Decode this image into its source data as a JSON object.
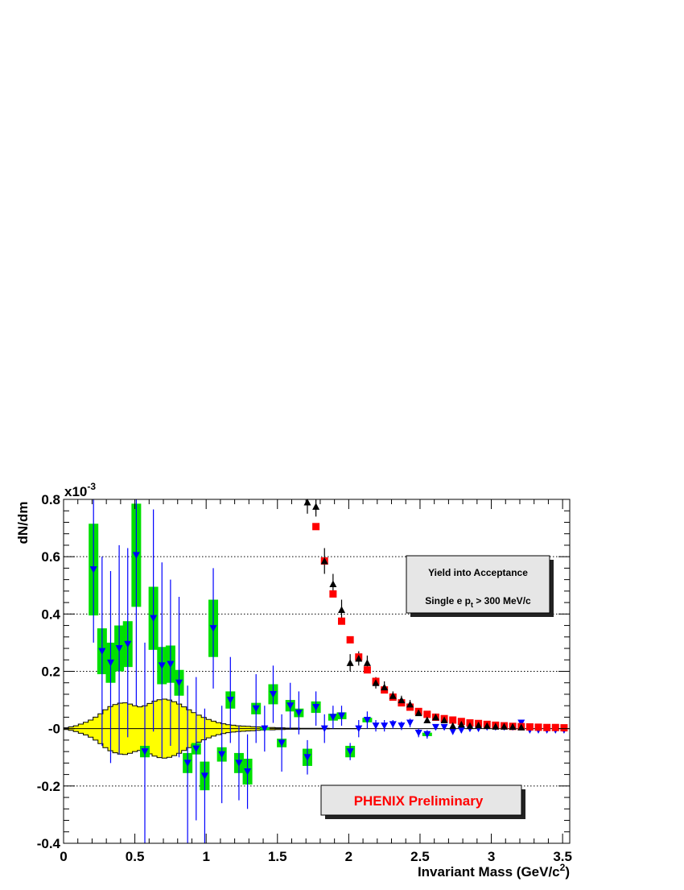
{
  "chart_data": {
    "type": "scatter",
    "ylabel": "dN/dm",
    "y_exponent_label": "x10",
    "y_exponent_sup": "-3",
    "xlabel_main": "Invariant Mass (GeV/c",
    "xlabel_sup": "2",
    "xlabel_end": ")",
    "xlim": [
      0,
      3.55
    ],
    "ylim": [
      -0.4,
      0.8
    ],
    "x_ticks": [
      {
        "value": 0,
        "label": "0"
      },
      {
        "value": 0.5,
        "label": "0.5"
      },
      {
        "value": 1,
        "label": "1"
      },
      {
        "value": 1.5,
        "label": "1.5"
      },
      {
        "value": 2,
        "label": "2"
      },
      {
        "value": 2.5,
        "label": "2.5"
      },
      {
        "value": 3,
        "label": "3"
      },
      {
        "value": 3.5,
        "label": "3.5"
      }
    ],
    "y_ticks": [
      {
        "value": -0.4,
        "label": "-0.4"
      },
      {
        "value": -0.2,
        "label": "-0.2"
      },
      {
        "value": 0,
        "label": "-0"
      },
      {
        "value": 0.2,
        "label": "0.2"
      },
      {
        "value": 0.4,
        "label": "0.4"
      },
      {
        "value": 0.6,
        "label": "0.6"
      },
      {
        "value": 0.8,
        "label": "0.8"
      }
    ],
    "gridlines_y": [
      -0.2,
      0.2,
      0.4,
      0.6
    ],
    "text_boxes": [
      {
        "line1": "Yield into Acceptance",
        "line2_main": "Single e p",
        "line2_sub": "t",
        "line2_end": " > 300 MeV/c"
      },
      {
        "text": "PHENIX Preliminary",
        "color": "#ff0000"
      }
    ],
    "colors": {
      "band_fill": "#ffff00",
      "syst_fill": "#00e000",
      "blue": "#0000ff",
      "red": "#ff0000",
      "black": "#000000",
      "grid": "#000000"
    },
    "band": {
      "bin_width": 0.0345,
      "start": 0.0,
      "half_width": [
        0.003,
        0.006,
        0.01,
        0.016,
        0.022,
        0.03,
        0.04,
        0.052,
        0.066,
        0.077,
        0.084,
        0.089,
        0.09,
        0.086,
        0.08,
        0.076,
        0.08,
        0.088,
        0.096,
        0.101,
        0.103,
        0.1,
        0.094,
        0.086,
        0.076,
        0.066,
        0.056,
        0.047,
        0.039,
        0.032,
        0.026,
        0.021,
        0.017,
        0.014,
        0.012,
        0.01,
        0.009,
        0.008,
        0.007,
        0.006,
        0.005,
        0.004,
        0.004,
        0.003,
        0.003,
        0.002,
        0.002,
        0.002,
        0.001,
        0.001,
        0.001,
        0.001,
        0.001,
        0.001,
        0.0005,
        0.0005,
        0.0005,
        0.0005,
        0.0005,
        0.0005
      ]
    },
    "series": [
      {
        "marker": "triangle-down",
        "color": "#0000ff",
        "points": [
          {
            "x": 0.21,
            "y": 0.555,
            "ylo": 0.3,
            "yhi": 0.8,
            "syst": 0.16
          },
          {
            "x": 0.27,
            "y": 0.27,
            "ylo": -0.06,
            "yhi": 0.6,
            "syst": 0.08
          },
          {
            "x": 0.33,
            "y": 0.23,
            "ylo": -0.12,
            "yhi": 0.55,
            "syst": 0.07
          },
          {
            "x": 0.39,
            "y": 0.28,
            "ylo": -0.09,
            "yhi": 0.64,
            "syst": 0.08
          },
          {
            "x": 0.45,
            "y": 0.295,
            "ylo": -0.03,
            "yhi": 0.63,
            "syst": 0.08
          },
          {
            "x": 0.51,
            "y": 0.605,
            "ylo": 0.08,
            "yhi": 0.8,
            "syst": 0.18
          },
          {
            "x": 0.57,
            "y": -0.08,
            "ylo": -0.4,
            "yhi": 0.3,
            "syst": 0.02
          },
          {
            "x": 0.63,
            "y": 0.385,
            "ylo": -0.01,
            "yhi": 0.765,
            "syst": 0.11
          },
          {
            "x": 0.69,
            "y": 0.22,
            "ylo": -0.1,
            "yhi": 0.58,
            "syst": 0.065
          },
          {
            "x": 0.75,
            "y": 0.225,
            "ylo": -0.06,
            "yhi": 0.52,
            "syst": 0.065
          },
          {
            "x": 0.81,
            "y": 0.16,
            "ylo": -0.1,
            "yhi": 0.46,
            "syst": 0.045
          },
          {
            "x": 0.87,
            "y": -0.12,
            "ylo": -0.4,
            "yhi": 0.15,
            "syst": 0.035
          },
          {
            "x": 0.93,
            "y": -0.07,
            "ylo": -0.32,
            "yhi": 0.18,
            "syst": 0.02
          },
          {
            "x": 0.99,
            "y": -0.165,
            "ylo": -0.4,
            "yhi": 0.07,
            "syst": 0.05
          },
          {
            "x": 1.05,
            "y": 0.35,
            "ylo": 0.14,
            "yhi": 0.56,
            "syst": 0.1
          },
          {
            "x": 1.11,
            "y": -0.09,
            "ylo": -0.26,
            "yhi": 0.08,
            "syst": 0.025
          },
          {
            "x": 1.17,
            "y": 0.1,
            "ylo": -0.05,
            "yhi": 0.25,
            "syst": 0.03
          },
          {
            "x": 1.23,
            "y": -0.12,
            "ylo": -0.25,
            "yhi": 0.01,
            "syst": 0.035
          },
          {
            "x": 1.29,
            "y": -0.15,
            "ylo": -0.28,
            "yhi": -0.02,
            "syst": 0.045
          },
          {
            "x": 1.35,
            "y": 0.07,
            "ylo": -0.05,
            "yhi": 0.19,
            "syst": 0.02
          },
          {
            "x": 1.41,
            "y": 0.0,
            "ylo": -0.08,
            "yhi": 0.08,
            "syst": 0.005
          },
          {
            "x": 1.47,
            "y": 0.12,
            "ylo": 0.02,
            "yhi": 0.22,
            "syst": 0.035
          },
          {
            "x": 1.53,
            "y": -0.05,
            "ylo": -0.15,
            "yhi": 0.05,
            "syst": 0.015
          },
          {
            "x": 1.59,
            "y": 0.08,
            "ylo": 0.0,
            "yhi": 0.16,
            "syst": 0.02
          },
          {
            "x": 1.65,
            "y": 0.055,
            "ylo": -0.02,
            "yhi": 0.13,
            "syst": 0.015
          },
          {
            "x": 1.71,
            "y": -0.1,
            "ylo": -0.16,
            "yhi": -0.04,
            "syst": 0.03
          },
          {
            "x": 1.77,
            "y": 0.075,
            "ylo": 0.01,
            "yhi": 0.13,
            "syst": 0.02
          },
          {
            "x": 1.83,
            "y": 0.0,
            "ylo": -0.05,
            "yhi": 0.05,
            "syst": 0.0
          },
          {
            "x": 1.89,
            "y": 0.04,
            "ylo": 0.0,
            "yhi": 0.08,
            "syst": 0.012
          },
          {
            "x": 1.95,
            "y": 0.045,
            "ylo": 0.01,
            "yhi": 0.08,
            "syst": 0.012
          },
          {
            "x": 2.01,
            "y": -0.08,
            "ylo": -0.11,
            "yhi": -0.05,
            "syst": 0.02
          },
          {
            "x": 2.07,
            "y": 0.0,
            "ylo": -0.03,
            "yhi": 0.03,
            "syst": 0.0
          },
          {
            "x": 2.13,
            "y": 0.03,
            "ylo": 0.0,
            "yhi": 0.06,
            "syst": 0.008
          },
          {
            "x": 2.19,
            "y": 0.01,
            "ylo": -0.01,
            "yhi": 0.03,
            "syst": 0.0
          },
          {
            "x": 2.25,
            "y": 0.01,
            "ylo": -0.01,
            "yhi": 0.03,
            "syst": 0.0
          },
          {
            "x": 2.31,
            "y": 0.015,
            "ylo": 0.0,
            "yhi": 0.03,
            "syst": 0.0
          },
          {
            "x": 2.37,
            "y": 0.01,
            "ylo": -0.005,
            "yhi": 0.025,
            "syst": 0.0
          },
          {
            "x": 2.43,
            "y": 0.02,
            "ylo": 0.005,
            "yhi": 0.035,
            "syst": 0.0
          },
          {
            "x": 2.49,
            "y": -0.015,
            "ylo": -0.03,
            "yhi": 0.0,
            "syst": 0.0
          },
          {
            "x": 2.55,
            "y": -0.02,
            "ylo": -0.035,
            "yhi": -0.005,
            "syst": 0.006
          },
          {
            "x": 2.61,
            "y": 0.005,
            "ylo": -0.005,
            "yhi": 0.015,
            "syst": 0.0
          },
          {
            "x": 2.67,
            "y": 0.005,
            "ylo": -0.005,
            "yhi": 0.015,
            "syst": 0.0
          },
          {
            "x": 2.73,
            "y": -0.01,
            "ylo": -0.02,
            "yhi": 0.0,
            "syst": 0.0
          },
          {
            "x": 2.79,
            "y": -0.005,
            "ylo": -0.015,
            "yhi": 0.005,
            "syst": 0.0
          },
          {
            "x": 2.85,
            "y": 0.0,
            "ylo": -0.008,
            "yhi": 0.008,
            "syst": 0.0
          },
          {
            "x": 2.91,
            "y": 0.0,
            "ylo": -0.008,
            "yhi": 0.008,
            "syst": 0.0
          },
          {
            "x": 2.97,
            "y": 0.005,
            "ylo": -0.003,
            "yhi": 0.013,
            "syst": 0.0
          },
          {
            "x": 3.03,
            "y": 0.005,
            "ylo": -0.003,
            "yhi": 0.013,
            "syst": 0.0
          },
          {
            "x": 3.09,
            "y": 0.005,
            "ylo": -0.003,
            "yhi": 0.013,
            "syst": 0.0
          },
          {
            "x": 3.15,
            "y": 0.005,
            "ylo": -0.003,
            "yhi": 0.013,
            "syst": 0.0
          },
          {
            "x": 3.21,
            "y": 0.02,
            "ylo": 0.012,
            "yhi": 0.028,
            "syst": 0.0
          },
          {
            "x": 3.27,
            "y": -0.005,
            "ylo": -0.01,
            "yhi": 0.0,
            "syst": 0.0
          },
          {
            "x": 3.33,
            "y": -0.005,
            "ylo": -0.01,
            "yhi": 0.0,
            "syst": 0.0
          },
          {
            "x": 3.39,
            "y": -0.005,
            "ylo": -0.01,
            "yhi": 0.0,
            "syst": 0.0
          },
          {
            "x": 3.45,
            "y": -0.005,
            "ylo": -0.01,
            "yhi": 0.0,
            "syst": 0.0
          },
          {
            "x": 3.51,
            "y": -0.005,
            "ylo": -0.01,
            "yhi": 0.0,
            "syst": 0.0
          }
        ]
      },
      {
        "marker": "square",
        "color": "#ff0000",
        "points": [
          {
            "x": 1.77,
            "y": 0.705
          },
          {
            "x": 1.83,
            "y": 0.585
          },
          {
            "x": 1.89,
            "y": 0.47
          },
          {
            "x": 1.95,
            "y": 0.375
          },
          {
            "x": 2.01,
            "y": 0.31
          },
          {
            "x": 2.07,
            "y": 0.25
          },
          {
            "x": 2.13,
            "y": 0.205
          },
          {
            "x": 2.19,
            "y": 0.165
          },
          {
            "x": 2.25,
            "y": 0.135
          },
          {
            "x": 2.31,
            "y": 0.11
          },
          {
            "x": 2.37,
            "y": 0.09
          },
          {
            "x": 2.43,
            "y": 0.075
          },
          {
            "x": 2.49,
            "y": 0.06
          },
          {
            "x": 2.55,
            "y": 0.05
          },
          {
            "x": 2.61,
            "y": 0.04
          },
          {
            "x": 2.67,
            "y": 0.035
          },
          {
            "x": 2.73,
            "y": 0.03
          },
          {
            "x": 2.79,
            "y": 0.025
          },
          {
            "x": 2.85,
            "y": 0.02
          },
          {
            "x": 2.91,
            "y": 0.018
          },
          {
            "x": 2.97,
            "y": 0.015
          },
          {
            "x": 3.03,
            "y": 0.012
          },
          {
            "x": 3.09,
            "y": 0.01
          },
          {
            "x": 3.15,
            "y": 0.008
          },
          {
            "x": 3.21,
            "y": 0.007
          },
          {
            "x": 3.27,
            "y": 0.006
          },
          {
            "x": 3.33,
            "y": 0.005
          },
          {
            "x": 3.39,
            "y": 0.004
          },
          {
            "x": 3.45,
            "y": 0.004
          },
          {
            "x": 3.51,
            "y": 0.003
          }
        ]
      },
      {
        "marker": "triangle-up",
        "color": "#000000",
        "points": [
          {
            "x": 1.71,
            "y": 0.79,
            "ylo": 0.75,
            "yhi": 0.8
          },
          {
            "x": 1.77,
            "y": 0.775,
            "ylo": 0.74,
            "yhi": 0.8
          },
          {
            "x": 1.83,
            "y": 0.585,
            "ylo": 0.54,
            "yhi": 0.63
          },
          {
            "x": 1.89,
            "y": 0.505,
            "ylo": 0.47,
            "yhi": 0.54
          },
          {
            "x": 1.95,
            "y": 0.415,
            "ylo": 0.38,
            "yhi": 0.45
          },
          {
            "x": 2.01,
            "y": 0.23,
            "ylo": 0.2,
            "yhi": 0.26
          },
          {
            "x": 2.07,
            "y": 0.245,
            "ylo": 0.22,
            "yhi": 0.27
          },
          {
            "x": 2.13,
            "y": 0.23,
            "ylo": 0.205,
            "yhi": 0.255
          },
          {
            "x": 2.19,
            "y": 0.16,
            "ylo": 0.14,
            "yhi": 0.18
          },
          {
            "x": 2.25,
            "y": 0.145,
            "ylo": 0.125,
            "yhi": 0.165
          },
          {
            "x": 2.31,
            "y": 0.115,
            "ylo": 0.1,
            "yhi": 0.13
          },
          {
            "x": 2.37,
            "y": 0.1,
            "ylo": 0.085,
            "yhi": 0.115
          },
          {
            "x": 2.43,
            "y": 0.085,
            "ylo": 0.07,
            "yhi": 0.1
          },
          {
            "x": 2.49,
            "y": 0.055,
            "ylo": 0.045,
            "yhi": 0.065
          },
          {
            "x": 2.55,
            "y": 0.03,
            "ylo": 0.02,
            "yhi": 0.04
          },
          {
            "x": 2.61,
            "y": 0.04,
            "ylo": 0.03,
            "yhi": 0.05
          },
          {
            "x": 2.67,
            "y": 0.03,
            "ylo": 0.022,
            "yhi": 0.038
          },
          {
            "x": 2.73,
            "y": 0.01,
            "ylo": 0.004,
            "yhi": 0.016
          },
          {
            "x": 2.79,
            "y": 0.015,
            "ylo": 0.008,
            "yhi": 0.022
          },
          {
            "x": 2.85,
            "y": 0.01,
            "ylo": 0.004,
            "yhi": 0.016
          },
          {
            "x": 2.91,
            "y": 0.012,
            "ylo": 0.006,
            "yhi": 0.018
          },
          {
            "x": 2.97,
            "y": 0.01,
            "ylo": 0.005,
            "yhi": 0.015
          },
          {
            "x": 3.03,
            "y": 0.008,
            "ylo": 0.004,
            "yhi": 0.012
          },
          {
            "x": 3.09,
            "y": 0.008,
            "ylo": 0.004,
            "yhi": 0.012
          },
          {
            "x": 3.15,
            "y": 0.007,
            "ylo": 0.003,
            "yhi": 0.011
          },
          {
            "x": 3.21,
            "y": 0.005,
            "ylo": 0.002,
            "yhi": 0.008
          }
        ]
      }
    ]
  }
}
